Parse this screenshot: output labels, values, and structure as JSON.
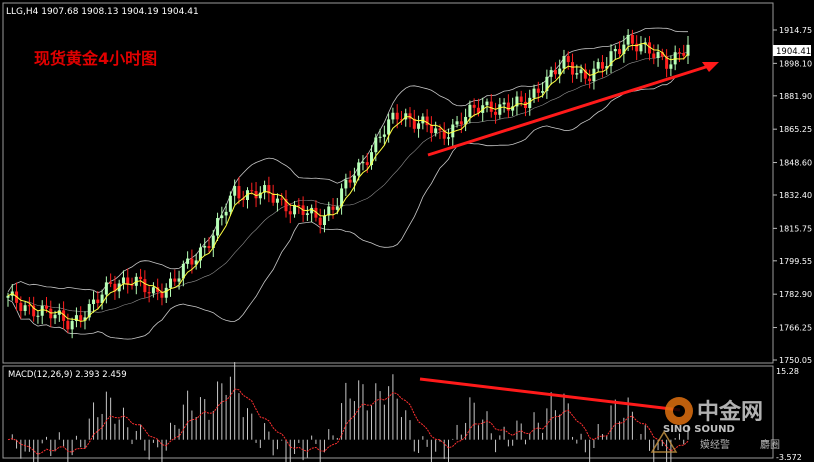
{
  "window": {
    "symbol_header": "LLG,H4  1907.68 1908.13 1904.19 1904.41",
    "chart_title": "现货黄金4小时图"
  },
  "indicator": {
    "label": "MACD(12,26,9) 2.393 2.459"
  },
  "watermark": {
    "logo_text": "中金网",
    "logo_sub": "SINO SOUND",
    "tagline_left": "嫫经警",
    "tagline_right": "麝圈"
  },
  "colors": {
    "background": "#000000",
    "text": "#ffffff",
    "title": "#e00000",
    "bull_candle": "#b7ffb7",
    "bear_candle": "#ff2020",
    "band": "#c8c8c8",
    "ma": "#ffff40",
    "trend_arrow": "#ff1a1a",
    "macd_hist": "#c8c8c8",
    "macd_signal": "#ff3030",
    "current_price_box": "#ffffff"
  },
  "chart_data": [
    {
      "type": "candlestick",
      "title": "现货黄金4小时图",
      "y_ticks": [
        "1914.75",
        "1898.10",
        "1881.90",
        "1865.25",
        "1848.60",
        "1832.40",
        "1815.75",
        "1799.55",
        "1782.90",
        "1766.25",
        "1750.05"
      ],
      "ylim": [
        1750.05,
        1918.5
      ],
      "current_price": "1904.41",
      "overlays": [
        "Bollinger Bands",
        "Moving Average"
      ],
      "close_path_anchors": [
        1780,
        1777,
        1772,
        1770,
        1774,
        1790,
        1788,
        1785,
        1787,
        1802,
        1812,
        1835,
        1833,
        1831,
        1825,
        1820,
        1830,
        1845,
        1862,
        1872,
        1870,
        1860,
        1872,
        1875,
        1878,
        1876,
        1890,
        1897,
        1893,
        1896,
        1912,
        1903,
        1900,
        1905
      ],
      "bars": 160,
      "annotation": "upward red trend arrow"
    },
    {
      "type": "bar",
      "title": "MACD(12,26,9)",
      "macd": 2.393,
      "signal": 2.459,
      "y_ticks": [
        "15.28",
        "-3.572"
      ],
      "ylim": [
        -3.572,
        15.28
      ],
      "annotation": "downward red divergence line"
    }
  ]
}
